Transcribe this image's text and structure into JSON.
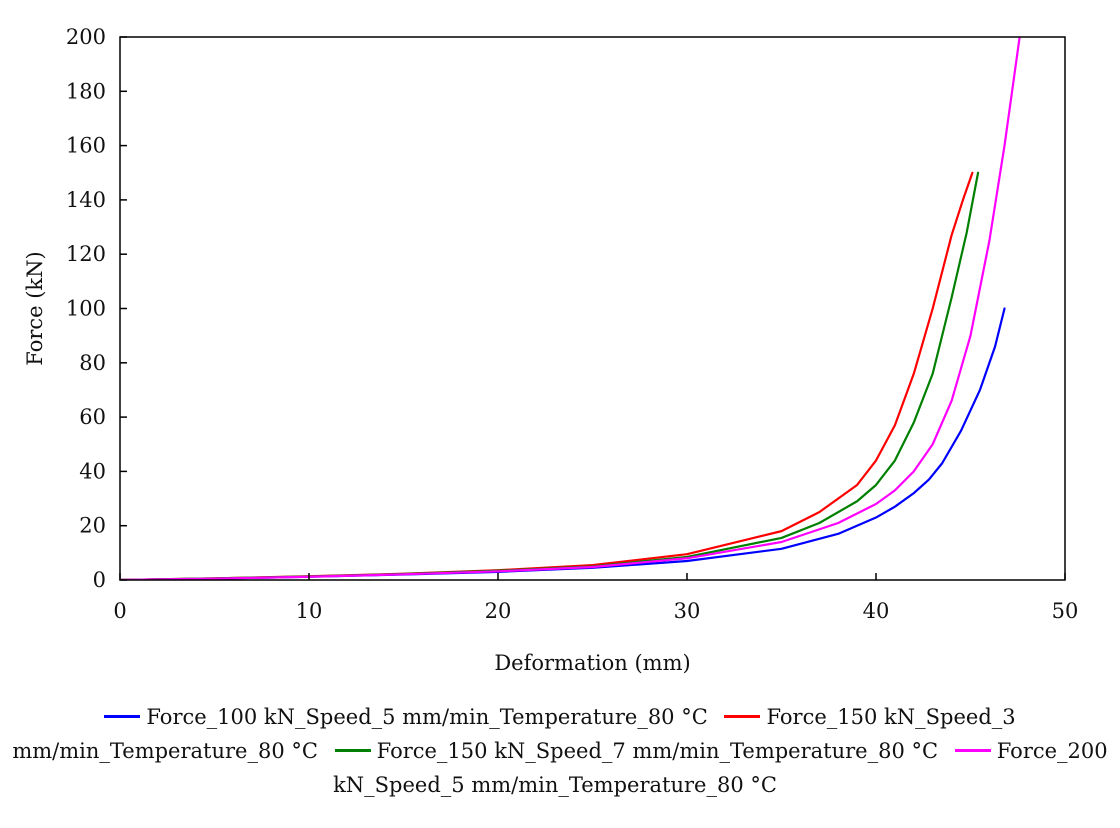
{
  "chart_data": {
    "type": "line",
    "title": "",
    "xlabel": "Deformation (mm)",
    "ylabel": "Force (kN)",
    "xlim": [
      0,
      50
    ],
    "ylim": [
      0,
      200
    ],
    "xticks": [
      0,
      10,
      20,
      30,
      40,
      50
    ],
    "yticks": [
      0,
      20,
      40,
      60,
      80,
      100,
      120,
      140,
      160,
      180,
      200
    ],
    "grid": false,
    "legend_position": "bottom",
    "series": [
      {
        "name": "Force_100 kN_Speed_5 mm/min_Temperature_80 °C",
        "color": "#0000ff",
        "x": [
          0,
          5,
          10,
          15,
          20,
          25,
          30,
          35,
          38,
          40,
          41,
          42,
          42.8,
          43.5,
          44.5,
          45.5,
          46.3,
          46.8
        ],
        "y": [
          0,
          0.5,
          1.2,
          2,
          3,
          4.5,
          7,
          11.5,
          17,
          23,
          27,
          32,
          37,
          43,
          55,
          70,
          86,
          100
        ]
      },
      {
        "name": "Force_150 kN_Speed_3 mm/min_Temperature_80 °C",
        "color": "#ff0000",
        "x": [
          0,
          5,
          10,
          15,
          20,
          25,
          30,
          35,
          37,
          39,
          40,
          41,
          42,
          43,
          44,
          44.6,
          45.1
        ],
        "y": [
          0,
          0.6,
          1.4,
          2.3,
          3.6,
          5.5,
          9.5,
          18,
          25,
          35,
          44,
          57,
          76,
          100,
          127,
          140,
          150
        ]
      },
      {
        "name": "Force_150 kN_Speed_7 mm/min_Temperature_80 °C",
        "color": "#008000",
        "x": [
          0,
          5,
          10,
          15,
          20,
          25,
          30,
          35,
          37,
          39,
          40,
          41,
          42,
          43,
          44,
          44.8,
          45.4
        ],
        "y": [
          0,
          0.6,
          1.3,
          2.2,
          3.4,
          5,
          8.5,
          15.5,
          21,
          29,
          35,
          44,
          58,
          76,
          104,
          128,
          150
        ]
      },
      {
        "name": "Force_200 kN_Speed_5 mm/min_Temperature_80 °C",
        "color": "#ff00ff",
        "x": [
          0,
          5,
          10,
          15,
          20,
          25,
          30,
          35,
          38,
          40,
          41,
          42,
          43,
          44,
          45,
          46,
          46.8,
          47.3,
          47.6
        ],
        "y": [
          0,
          0.5,
          1.2,
          2.1,
          3.2,
          4.8,
          8,
          14,
          21,
          28,
          33,
          40,
          50,
          66,
          90,
          125,
          160,
          185,
          200
        ]
      }
    ]
  }
}
